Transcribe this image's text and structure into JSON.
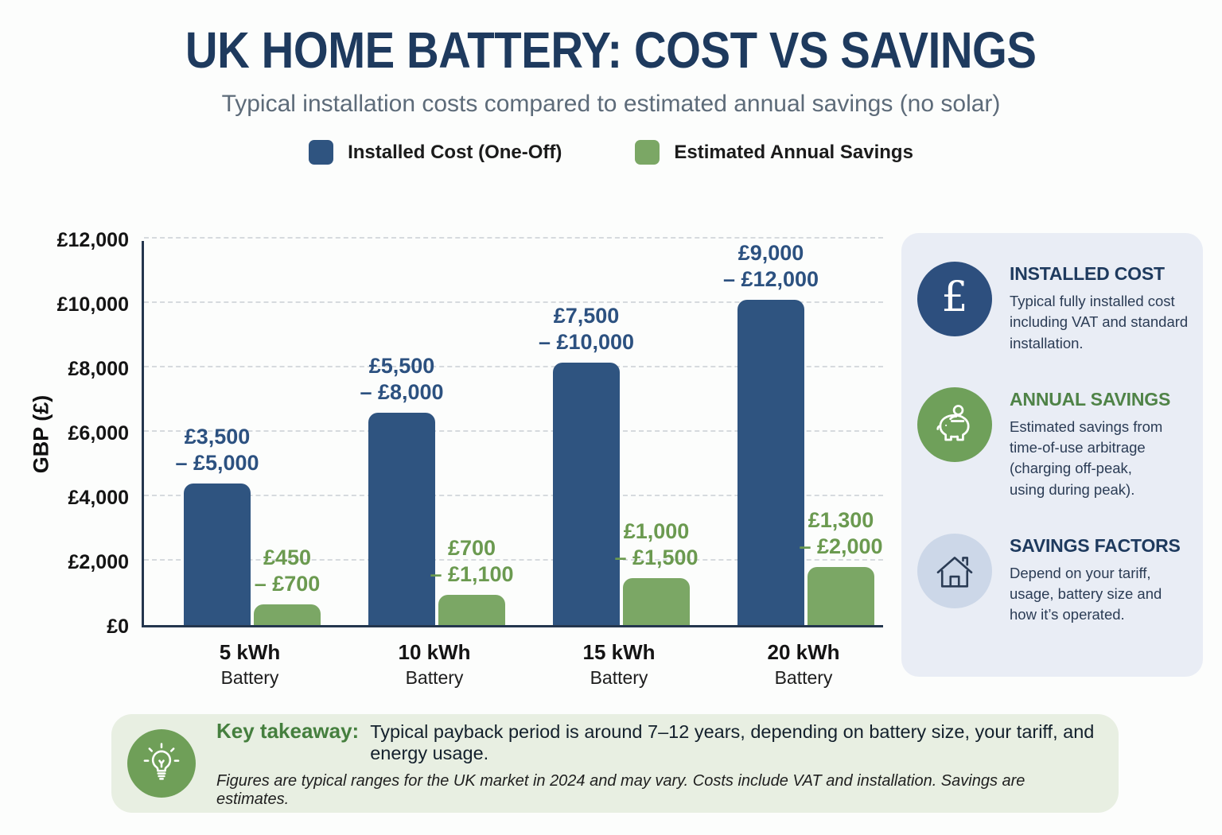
{
  "header": {
    "title": "UK HOME BATTERY: COST VS SAVINGS",
    "subtitle": "Typical installation costs compared to estimated annual savings (no solar)"
  },
  "legend": [
    {
      "label": "Installed Cost (One-Off)",
      "color": "#2f5480"
    },
    {
      "label": "Estimated Annual Savings",
      "color": "#7ba765"
    }
  ],
  "chart_data": {
    "type": "bar",
    "title": "UK Home Battery: Cost vs Savings",
    "subtitle": "Typical installation costs compared to estimated annual savings (no solar)",
    "xlabel": "",
    "ylabel": "GBP (£)",
    "ylim": [
      0,
      12000
    ],
    "grid": "horizontal-dashed",
    "legend_position": "top",
    "yticks": [
      {
        "label": "£0",
        "value": 0
      },
      {
        "label": "£2,000",
        "value": 2000
      },
      {
        "label": "£4,000",
        "value": 4000
      },
      {
        "label": "£6,000",
        "value": 6000
      },
      {
        "label": "£8,000",
        "value": 8000
      },
      {
        "label": "£10,000",
        "value": 10000
      },
      {
        "label": "£12,000",
        "value": 12000
      }
    ],
    "categories": [
      {
        "size": "5 kWh",
        "sub": "Battery"
      },
      {
        "size": "10 kWh",
        "sub": "Battery"
      },
      {
        "size": "15 kWh",
        "sub": "Battery"
      },
      {
        "size": "20 kWh",
        "sub": "Battery"
      }
    ],
    "series": [
      {
        "name": "Installed Cost (One-Off)",
        "color": "#2f5480",
        "values": [
          4400,
          6600,
          8150,
          10100
        ],
        "range_labels": [
          "£3,500\n– £5,000",
          "£5,500\n– £8,000",
          "£7,500\n– £10,000",
          "£9,000\n– £12,000"
        ],
        "ranges": [
          [
            3500,
            5000
          ],
          [
            5500,
            8000
          ],
          [
            7500,
            10000
          ],
          [
            9000,
            12000
          ]
        ]
      },
      {
        "name": "Estimated Annual Savings",
        "color": "#7ba765",
        "values": [
          650,
          950,
          1450,
          1800
        ],
        "range_labels": [
          "£450\n– £700",
          "£700\n– £1,100",
          "£1,000\n– £1,500",
          "£1,300\n– £2,000"
        ],
        "ranges": [
          [
            450,
            700
          ],
          [
            700,
            1100
          ],
          [
            1000,
            1500
          ],
          [
            1300,
            2000
          ]
        ]
      }
    ]
  },
  "sidebar": {
    "items": [
      {
        "title": "INSTALLED COST",
        "body": "Typical fully installed cost\nincluding VAT and standard\ninstallation."
      },
      {
        "title": "ANNUAL SAVINGS",
        "body": "Estimated savings from\ntime-of-use arbitrage\n(charging off-peak,\nusing during peak)."
      },
      {
        "title": "SAVINGS FACTORS",
        "body": "Depend on your tariff,\nusage, battery size and\nhow it’s operated."
      }
    ]
  },
  "takeaway": {
    "label": "Key takeaway:",
    "text": "Typical payback period is around 7–12 years, depending on battery size, your tariff, and energy usage.",
    "footnote": "Figures are typical ranges for the UK market in 2024 and may vary. Costs include VAT and installation. Savings are estimates."
  }
}
